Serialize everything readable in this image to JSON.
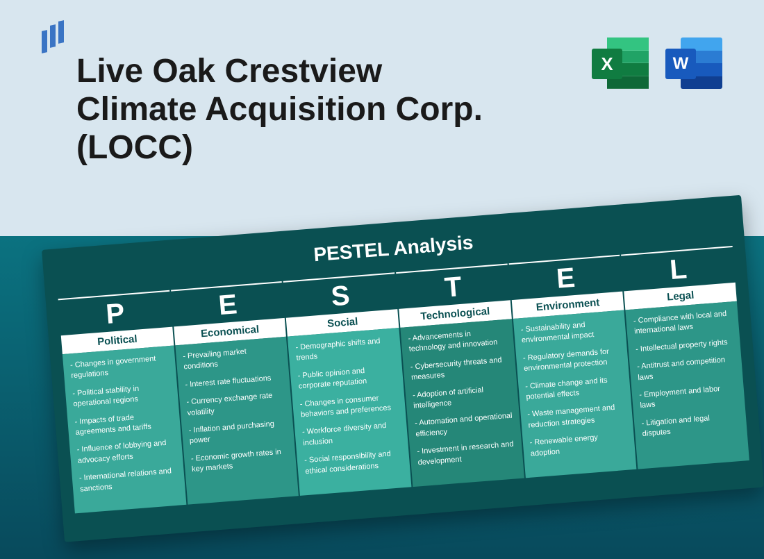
{
  "header": {
    "title": "Live Oak Crestview Climate Acquisition Corp. (LOCC)",
    "excel_letter": "X",
    "word_letter": "W"
  },
  "colors": {
    "page_bg": "#d8e6ef",
    "logo_bar": "#3a74c4",
    "bottom_gradient_top": "#0b7280",
    "bottom_gradient_bottom": "#084a5c",
    "card_bg": "#0a5052",
    "heading_bg": "#ffffff",
    "heading_text": "#0a5052",
    "excel_badge": "#107c41",
    "word_badge": "#185abd"
  },
  "pestel": {
    "title": "PESTEL Analysis",
    "title_fontsize": 28,
    "letter_fontsize": 40,
    "heading_fontsize": 15,
    "body_fontsize": 11,
    "rotation_deg": -4.5,
    "columns": [
      {
        "letter": "P",
        "heading": "Political",
        "body_color": "#3aa99a",
        "items": [
          "Changes in government regulations",
          "Political stability in operational regions",
          "Impacts of trade agreements and tariffs",
          "Influence of lobbying and advocacy efforts",
          "International relations and sanctions"
        ]
      },
      {
        "letter": "E",
        "heading": "Economical",
        "body_color": "#2d9688",
        "items": [
          "Prevailing market conditions",
          "Interest rate fluctuations",
          "Currency exchange rate volatility",
          "Inflation and purchasing power",
          "Economic growth rates in key markets"
        ]
      },
      {
        "letter": "S",
        "heading": "Social",
        "body_color": "#3bb0a0",
        "items": [
          "Demographic shifts and trends",
          "Public opinion and corporate reputation",
          "Changes in consumer behaviors and preferences",
          "Workforce diversity and inclusion",
          "Social responsibility and ethical considerations"
        ]
      },
      {
        "letter": "T",
        "heading": "Technological",
        "body_color": "#258778",
        "items": [
          "Advancements in technology and innovation",
          "Cybersecurity threats and measures",
          "Adoption of artificial intelligence",
          "Automation and operational efficiency",
          "Investment in research and development"
        ]
      },
      {
        "letter": "E",
        "heading": "Environment",
        "body_color": "#3aa99a",
        "items": [
          "Sustainability and environmental impact",
          "Regulatory demands for environmental protection",
          "Climate change and its potential effects",
          "Waste management and reduction strategies",
          "Renewable energy adoption"
        ]
      },
      {
        "letter": "L",
        "heading": "Legal",
        "body_color": "#2d9688",
        "items": [
          "Compliance with local and international laws",
          "Intellectual property rights",
          "Antitrust and competition laws",
          "Employment and labor laws",
          "Litigation and legal disputes"
        ]
      }
    ]
  }
}
